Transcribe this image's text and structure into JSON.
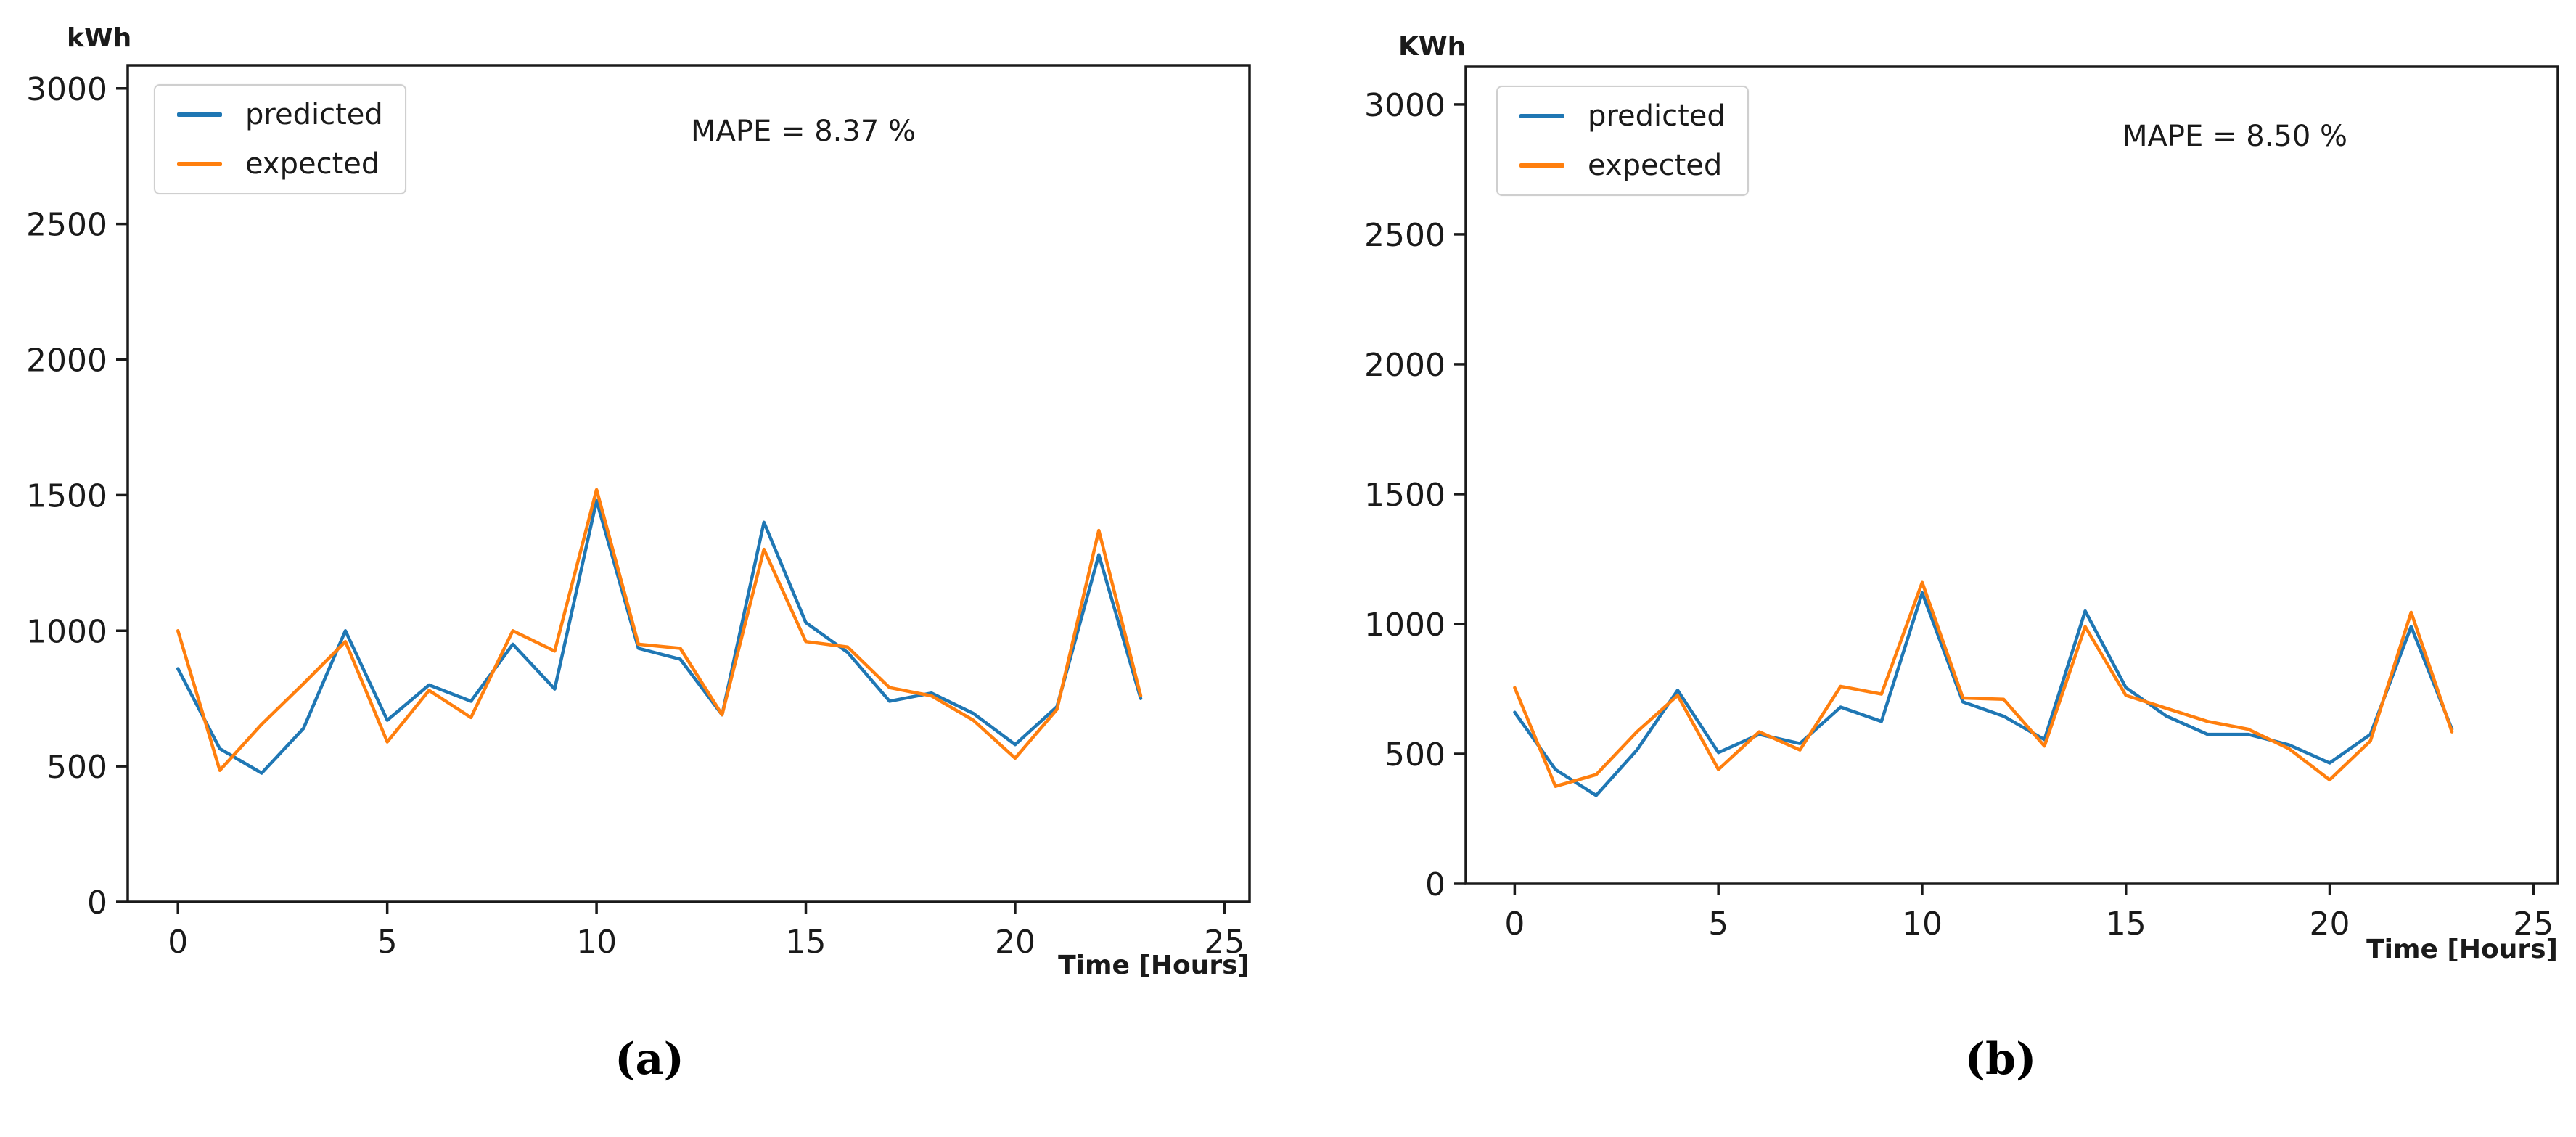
{
  "figure": {
    "background": "#ffffff",
    "axis_color": "#1a1a1a",
    "type": "dual-panel line figure"
  },
  "chart_data": [
    {
      "type": "line",
      "panel": "left",
      "caption": "(a)",
      "unit_label": "kWh",
      "xlabel": "Time [Hours]",
      "mape_text": "MAPE = 8.37 %",
      "legend_position": "upper-left",
      "grid": false,
      "xlim": [
        -1.2,
        25.6
      ],
      "ylim": [
        0,
        3085
      ],
      "hours": [
        0,
        1,
        2,
        3,
        4,
        5,
        6,
        7,
        8,
        9,
        10,
        11,
        12,
        13,
        14,
        15,
        16,
        17,
        18,
        19,
        20,
        21,
        22,
        23
      ],
      "xticks": [
        {
          "v": 0,
          "label": "0"
        },
        {
          "v": 5,
          "label": "5"
        },
        {
          "v": 10,
          "label": "10"
        },
        {
          "v": 15,
          "label": "15"
        },
        {
          "v": 20,
          "label": "20"
        },
        {
          "v": 25,
          "label": "25"
        }
      ],
      "yticks": [
        {
          "v": 0,
          "label": "0"
        },
        {
          "v": 500,
          "label": "500"
        },
        {
          "v": 1000,
          "label": "1000"
        },
        {
          "v": 1500,
          "label": "1500"
        },
        {
          "v": 2000,
          "label": "2000"
        },
        {
          "v": 2500,
          "label": "2500"
        },
        {
          "v": 3000,
          "label": "3000"
        }
      ],
      "series": [
        {
          "name": "predicted",
          "color": "#1f77b4",
          "values": [
            860,
            565,
            475,
            640,
            1000,
            670,
            800,
            740,
            950,
            785,
            1480,
            935,
            895,
            690,
            1400,
            1030,
            920,
            740,
            770,
            695,
            580,
            720,
            1280,
            750
          ]
        },
        {
          "name": "expected",
          "color": "#ff7f0e",
          "values": [
            1000,
            485,
            655,
            805,
            960,
            590,
            780,
            680,
            1000,
            925,
            1520,
            950,
            935,
            690,
            1300,
            960,
            940,
            790,
            760,
            670,
            530,
            710,
            1370,
            760
          ]
        }
      ]
    },
    {
      "type": "line",
      "panel": "right",
      "caption": "(b)",
      "unit_label": "KWh",
      "xlabel": "Time [Hours]",
      "mape_text": "MAPE = 8.50 %",
      "legend_position": "upper-left",
      "grid": false,
      "xlim": [
        -1.2,
        25.6
      ],
      "ylim": [
        0,
        3145
      ],
      "hours": [
        0,
        1,
        2,
        3,
        4,
        5,
        6,
        7,
        8,
        9,
        10,
        11,
        12,
        13,
        14,
        15,
        16,
        17,
        18,
        19,
        20,
        21,
        22,
        23
      ],
      "xticks": [
        {
          "v": 0,
          "label": "0"
        },
        {
          "v": 5,
          "label": "5"
        },
        {
          "v": 10,
          "label": "10"
        },
        {
          "v": 15,
          "label": "15"
        },
        {
          "v": 20,
          "label": "20"
        },
        {
          "v": 25,
          "label": "25"
        }
      ],
      "yticks": [
        {
          "v": 0,
          "label": "0"
        },
        {
          "v": 500,
          "label": "500"
        },
        {
          "v": 1000,
          "label": "1000"
        },
        {
          "v": 1500,
          "label": "1500"
        },
        {
          "v": 2000,
          "label": "2000"
        },
        {
          "v": 2500,
          "label": "2500"
        },
        {
          "v": 3000,
          "label": "3000"
        }
      ],
      "series": [
        {
          "name": "predicted",
          "color": "#1f77b4",
          "values": [
            660,
            440,
            340,
            515,
            745,
            505,
            575,
            540,
            680,
            625,
            1120,
            700,
            645,
            555,
            1050,
            755,
            645,
            575,
            575,
            535,
            465,
            575,
            990,
            595
          ]
        },
        {
          "name": "expected",
          "color": "#ff7f0e",
          "values": [
            755,
            375,
            420,
            585,
            725,
            440,
            585,
            515,
            760,
            730,
            1160,
            715,
            710,
            530,
            990,
            725,
            675,
            625,
            595,
            520,
            400,
            550,
            1045,
            585
          ]
        }
      ]
    }
  ]
}
